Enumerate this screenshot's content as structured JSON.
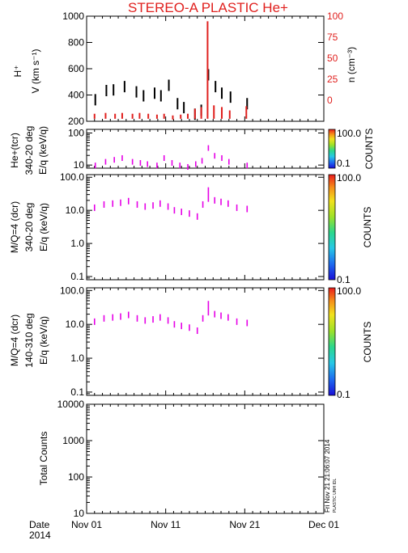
{
  "title": "STEREO-A PLASTIC He+",
  "colors": {
    "title": "#e0201e",
    "density": "#e0201e",
    "speed": "#000000",
    "eq": "#e600e6"
  },
  "date_label": "Date",
  "year_label": "2014",
  "timestamp": "Fri Nov 21 21:06:07 2014",
  "timestamp_sub": "PLASTIC UNH IDL",
  "x_ticks": [
    "Nov 01",
    "Nov 11",
    "Nov 21",
    "Dec 01"
  ],
  "chart_data": [
    {
      "type": "line",
      "ylabel_top": "H⁺",
      "ylabel": "V (km s⁻¹)",
      "ylabel_right": "n (cm⁻³)",
      "ylim": [
        200,
        1000
      ],
      "y_ticks": [
        "1000",
        "800",
        "600",
        "400",
        "200"
      ],
      "y_ticks_right": [
        "100",
        "75",
        "50",
        "25",
        "0"
      ],
      "ylim_right": [
        -25,
        100
      ],
      "xlim": [
        "2014-11-01",
        "2014-12-01"
      ],
      "series": [
        {
          "axis": "left",
          "color": "#000000",
          "x": [
            1.1,
            2.5,
            3.4,
            4.8,
            6.3,
            7.2,
            8.6,
            9.4,
            10.4,
            11.5,
            12.3,
            13.7,
            14.5,
            15.4,
            16.3,
            17.1,
            18.2,
            20.3
          ],
          "y": [
            370,
            440,
            445,
            470,
            430,
            400,
            420,
            400,
            480,
            340,
            310,
            260,
            290,
            560,
            470,
            420,
            390,
            340
          ]
        },
        {
          "axis": "right",
          "color": "#e0201e",
          "x": [
            1.0,
            2.4,
            3.6,
            4.5,
            5.8,
            6.7,
            7.8,
            8.9,
            9.8,
            10.9,
            11.9,
            12.8,
            13.7,
            14.5,
            15.3,
            16.1,
            17.1,
            18.1,
            20.2
          ],
          "y": [
            -18,
            -17,
            -18,
            -17,
            -18,
            -17,
            -18,
            -19,
            -18,
            -20,
            -19,
            -18,
            -12,
            -10,
            92,
            -8,
            -10,
            -14,
            -9
          ]
        }
      ]
    },
    {
      "type": "heatmap",
      "ylabel_top": "He+(tcr)",
      "ylabel_mid": "340-20 deg",
      "ylabel": "E/q (keV/q)",
      "y_scale": "log",
      "ylim": [
        8,
        130
      ],
      "y_ticks": [
        "100",
        "10"
      ],
      "colorbar": {
        "max": "100.0",
        "min": "0.1",
        "label": "COUNTS"
      },
      "x": [
        1.1,
        2.4,
        3.5,
        4.5,
        5.8,
        6.8,
        7.7,
        8.9,
        9.8,
        10.8,
        11.8,
        12.8,
        13.8,
        14.6,
        15.4,
        16.2,
        17.1,
        18.0,
        20.3
      ],
      "y": [
        10,
        13,
        15,
        17,
        13,
        12,
        11,
        10,
        17,
        12,
        10,
        9,
        11,
        14,
        35,
        20,
        17,
        13,
        10
      ]
    },
    {
      "type": "heatmap",
      "ylabel_top": "M/Q=4 (dcr)",
      "ylabel_mid": "340-20 deg",
      "ylabel": "E/q (keV/q)",
      "y_scale": "log",
      "ylim": [
        0.08,
        120
      ],
      "y_ticks": [
        "100.0",
        "10.0",
        "1.0",
        "0.1"
      ],
      "colorbar": {
        "max": "100.0",
        "min": "0.1",
        "label": "COUNTS"
      },
      "x": [
        1.0,
        2.2,
        3.3,
        4.3,
        5.3,
        6.4,
        7.4,
        8.4,
        9.3,
        10.3,
        11.1,
        12.0,
        13.0,
        14.0,
        14.7,
        15.4,
        16.2,
        17.0,
        17.9,
        19.0,
        20.3
      ],
      "y": [
        12.0,
        15.0,
        16.0,
        17.0,
        19.0,
        15.0,
        13.0,
        14.0,
        16.0,
        13.0,
        10.0,
        9.0,
        8.0,
        6.5,
        15.0,
        30.0,
        20.0,
        18.0,
        16.0,
        12.0,
        11.0
      ]
    },
    {
      "type": "heatmap",
      "ylabel_top": "M/Q=4 (dcr)",
      "ylabel_mid": "140-310 deg",
      "ylabel": "E/q (keV/q)",
      "y_scale": "log",
      "ylim": [
        0.08,
        120
      ],
      "y_ticks": [
        "100.0",
        "10.0",
        "1.0",
        "0.1"
      ],
      "colorbar": {
        "max": "100.0",
        "min": "0.1",
        "label": "COUNTS"
      },
      "x": [
        1.0,
        2.2,
        3.3,
        4.3,
        5.3,
        6.4,
        7.4,
        8.4,
        9.3,
        10.3,
        11.1,
        12.0,
        13.0,
        14.0,
        14.7,
        15.4,
        16.2,
        17.0,
        17.9,
        19.0,
        20.3
      ],
      "y": [
        12.0,
        15.0,
        16.0,
        17.0,
        19.0,
        15.0,
        13.0,
        14.0,
        16.0,
        13.0,
        10.0,
        9.0,
        8.0,
        6.5,
        15.0,
        30.0,
        20.0,
        18.0,
        16.0,
        12.0,
        11.0
      ]
    },
    {
      "type": "line",
      "ylabel": "Total Counts",
      "y_scale": "log",
      "ylim": [
        10,
        10000
      ],
      "y_ticks": [
        "10000",
        "1000",
        "100",
        "10"
      ],
      "series": []
    }
  ]
}
